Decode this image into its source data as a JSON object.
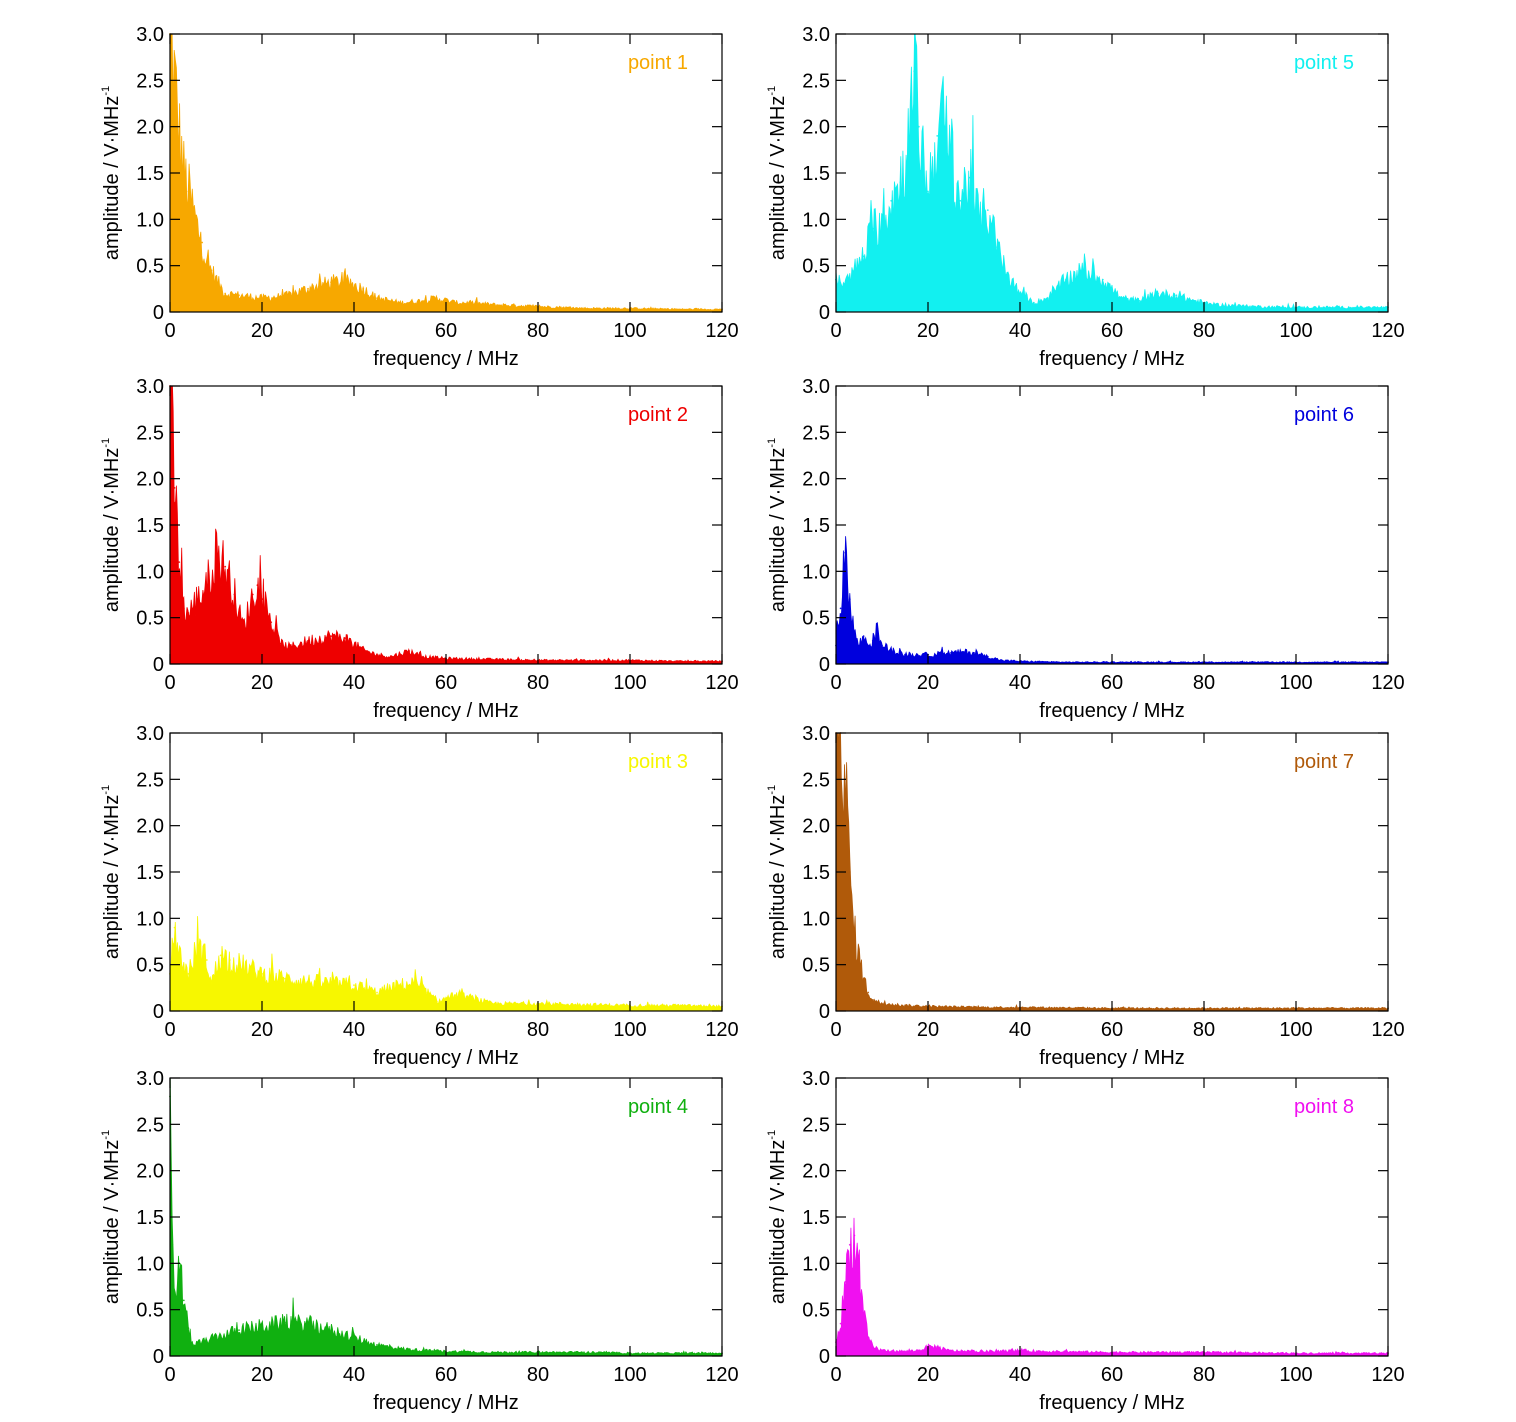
{
  "chart_data": [
    {
      "type": "area",
      "legend": "point 1",
      "color": "#f7a800",
      "xlabel": "frequency / MHz",
      "ylabel": "amplitude / V·MHz",
      "ylabel_sup": "-1",
      "xlim": [
        0,
        120
      ],
      "ylim": [
        0,
        3.0
      ],
      "xticks": [
        0,
        20,
        40,
        60,
        80,
        100,
        120
      ],
      "yticks": [
        "0",
        "0.5",
        "1.0",
        "1.5",
        "2.0",
        "2.5",
        "3.0"
      ],
      "x": [
        0,
        1,
        2,
        3,
        4,
        5,
        6,
        7,
        8,
        9,
        10,
        12,
        15,
        20,
        25,
        30,
        35,
        38,
        42,
        45,
        50,
        55,
        58,
        62,
        65,
        70,
        75,
        80,
        85,
        90,
        100,
        110,
        120
      ],
      "y": [
        3.0,
        2.5,
        1.9,
        1.5,
        1.3,
        1.1,
        0.9,
        0.75,
        0.5,
        0.45,
        0.35,
        0.2,
        0.18,
        0.15,
        0.17,
        0.25,
        0.32,
        0.33,
        0.25,
        0.15,
        0.1,
        0.12,
        0.15,
        0.1,
        0.1,
        0.08,
        0.07,
        0.06,
        0.05,
        0.04,
        0.04,
        0.03,
        0.03
      ]
    },
    {
      "type": "area",
      "legend": "point 2",
      "color": "#ee0000",
      "xlabel": "frequency / MHz",
      "ylabel": "amplitude / V·MHz",
      "ylabel_sup": "-1",
      "xlim": [
        0,
        120
      ],
      "ylim": [
        0,
        3.0
      ],
      "xticks": [
        0,
        20,
        40,
        60,
        80,
        100,
        120
      ],
      "yticks": [
        "0",
        "0.5",
        "1.0",
        "1.5",
        "2.0",
        "2.5",
        "3.0"
      ],
      "x": [
        0,
        1,
        2,
        3,
        4,
        6,
        8,
        10,
        12,
        14,
        15,
        16,
        18,
        19,
        20,
        22,
        24,
        26,
        30,
        35,
        38,
        42,
        45,
        48,
        52,
        55,
        60,
        70,
        80,
        90,
        100,
        110,
        120
      ],
      "y": [
        3.0,
        1.9,
        1.1,
        0.6,
        0.55,
        0.7,
        0.85,
        1.2,
        1.05,
        0.75,
        0.55,
        0.4,
        0.75,
        0.85,
        0.7,
        0.45,
        0.22,
        0.18,
        0.25,
        0.3,
        0.28,
        0.15,
        0.1,
        0.08,
        0.14,
        0.08,
        0.06,
        0.05,
        0.04,
        0.04,
        0.04,
        0.03,
        0.03
      ]
    },
    {
      "type": "area",
      "legend": "point 3",
      "color": "#f7f700",
      "xlabel": "frequency / MHz",
      "ylabel": "amplitude / V·MHz",
      "ylabel_sup": "-1",
      "xlim": [
        0,
        120
      ],
      "ylim": [
        0,
        3.0
      ],
      "xticks": [
        0,
        20,
        40,
        60,
        80,
        100,
        120
      ],
      "yticks": [
        "0",
        "0.5",
        "1.0",
        "1.5",
        "2.0",
        "2.5",
        "3.0"
      ],
      "x": [
        0,
        1,
        2,
        4,
        6,
        8,
        9,
        11,
        13,
        15,
        20,
        25,
        30,
        35,
        40,
        45,
        50,
        53,
        56,
        58,
        62,
        65,
        70,
        80,
        90,
        100,
        110,
        120
      ],
      "y": [
        0.4,
        0.9,
        0.6,
        0.4,
        0.7,
        0.55,
        0.3,
        0.6,
        0.55,
        0.5,
        0.4,
        0.35,
        0.32,
        0.3,
        0.28,
        0.2,
        0.28,
        0.3,
        0.2,
        0.1,
        0.17,
        0.15,
        0.08,
        0.08,
        0.07,
        0.06,
        0.06,
        0.05
      ]
    },
    {
      "type": "area",
      "legend": "point 4",
      "color": "#10b010",
      "xlabel": "frequency / MHz",
      "ylabel": "amplitude / V·MHz",
      "ylabel_sup": "-1",
      "xlim": [
        0,
        120
      ],
      "ylim": [
        0,
        3.0
      ],
      "xticks": [
        0,
        20,
        40,
        60,
        80,
        100,
        120
      ],
      "yticks": [
        "0",
        "0.5",
        "1.0",
        "1.5",
        "2.0",
        "2.5",
        "3.0"
      ],
      "x": [
        0,
        0.5,
        1,
        2,
        3,
        4,
        5,
        7,
        10,
        15,
        20,
        25,
        30,
        35,
        40,
        45,
        50,
        55,
        60,
        70,
        80,
        90,
        100,
        110,
        120
      ],
      "y": [
        2.8,
        1.2,
        0.5,
        1.0,
        0.6,
        0.3,
        0.12,
        0.15,
        0.2,
        0.28,
        0.32,
        0.36,
        0.35,
        0.28,
        0.2,
        0.12,
        0.08,
        0.06,
        0.05,
        0.04,
        0.04,
        0.04,
        0.03,
        0.03,
        0.03
      ]
    },
    {
      "type": "area",
      "legend": "point 5",
      "color": "#12f0f0",
      "xlabel": "frequency / MHz",
      "ylabel": "amplitude / V·MHz",
      "ylabel_sup": "-1",
      "xlim": [
        0,
        120
      ],
      "ylim": [
        0,
        3.0
      ],
      "xticks": [
        0,
        20,
        40,
        60,
        80,
        100,
        120
      ],
      "yticks": [
        "0",
        "0.5",
        "1.0",
        "1.5",
        "2.0",
        "2.5",
        "3.0"
      ],
      "x": [
        0,
        2,
        4,
        6,
        8,
        10,
        12,
        14,
        16,
        17,
        18,
        20,
        22,
        23,
        25,
        27,
        29,
        31,
        33,
        35,
        37,
        40,
        43,
        46,
        50,
        54,
        58,
        62,
        66,
        70,
        74,
        78,
        82,
        90,
        100,
        110,
        120
      ],
      "y": [
        0.35,
        0.3,
        0.45,
        0.6,
        0.9,
        1.0,
        1.2,
        1.4,
        1.9,
        2.6,
        2.0,
        1.3,
        1.9,
        2.1,
        1.7,
        1.2,
        1.45,
        1.0,
        1.1,
        0.7,
        0.4,
        0.2,
        0.1,
        0.15,
        0.35,
        0.45,
        0.35,
        0.15,
        0.12,
        0.2,
        0.18,
        0.12,
        0.08,
        0.06,
        0.05,
        0.05,
        0.05
      ]
    },
    {
      "type": "area",
      "legend": "point 6",
      "color": "#0000dd",
      "xlabel": "frequency / MHz",
      "ylabel": "amplitude / V·MHz",
      "ylabel_sup": "-1",
      "xlim": [
        0,
        120
      ],
      "ylim": [
        0,
        3.0
      ],
      "xticks": [
        0,
        20,
        40,
        60,
        80,
        100,
        120
      ],
      "yticks": [
        "0",
        "0.5",
        "1.0",
        "1.5",
        "2.0",
        "2.5",
        "3.0"
      ],
      "x": [
        0,
        1,
        2,
        3,
        4,
        5,
        6,
        7,
        8,
        9,
        10,
        12,
        15,
        20,
        25,
        28,
        30,
        33,
        36,
        40,
        50,
        60,
        80,
        100,
        120
      ],
      "y": [
        0.2,
        0.6,
        1.2,
        0.7,
        0.35,
        0.2,
        0.3,
        0.2,
        0.25,
        0.38,
        0.2,
        0.15,
        0.1,
        0.1,
        0.12,
        0.13,
        0.12,
        0.08,
        0.04,
        0.03,
        0.02,
        0.02,
        0.02,
        0.02,
        0.02
      ]
    },
    {
      "type": "area",
      "legend": "point 7",
      "color": "#b05a0a",
      "xlabel": "frequency / MHz",
      "ylabel": "amplitude / V·MHz",
      "ylabel_sup": "-1",
      "xlim": [
        0,
        120
      ],
      "ylim": [
        0,
        3.0
      ],
      "xticks": [
        0,
        20,
        40,
        60,
        80,
        100,
        120
      ],
      "yticks": [
        "0",
        "0.5",
        "1.0",
        "1.5",
        "2.0",
        "2.5",
        "3.0"
      ],
      "x": [
        0,
        1,
        2,
        3,
        4,
        5,
        6,
        7,
        8,
        10,
        15,
        20,
        30,
        40,
        60,
        80,
        100,
        120
      ],
      "y": [
        3.0,
        3.0,
        2.5,
        1.5,
        0.85,
        0.6,
        0.35,
        0.2,
        0.12,
        0.08,
        0.06,
        0.05,
        0.04,
        0.04,
        0.03,
        0.03,
        0.03,
        0.03
      ]
    },
    {
      "type": "area",
      "legend": "point 8",
      "color": "#f010f0",
      "xlabel": "frequency / MHz",
      "ylabel": "amplitude / V·MHz",
      "ylabel_sup": "-1",
      "xlim": [
        0,
        120
      ],
      "ylim": [
        0,
        3.0
      ],
      "xticks": [
        0,
        20,
        40,
        60,
        80,
        100,
        120
      ],
      "yticks": [
        "0",
        "0.5",
        "1.0",
        "1.5",
        "2.0",
        "2.5",
        "3.0"
      ],
      "x": [
        0,
        1,
        2,
        3,
        4,
        5,
        6,
        7,
        8,
        10,
        15,
        18,
        20,
        22,
        24,
        28,
        35,
        40,
        45,
        60,
        80,
        100,
        120
      ],
      "y": [
        0.15,
        0.35,
        0.8,
        1.2,
        1.3,
        0.9,
        0.45,
        0.2,
        0.1,
        0.06,
        0.05,
        0.06,
        0.1,
        0.1,
        0.06,
        0.05,
        0.05,
        0.06,
        0.05,
        0.04,
        0.04,
        0.03,
        0.03
      ]
    }
  ]
}
